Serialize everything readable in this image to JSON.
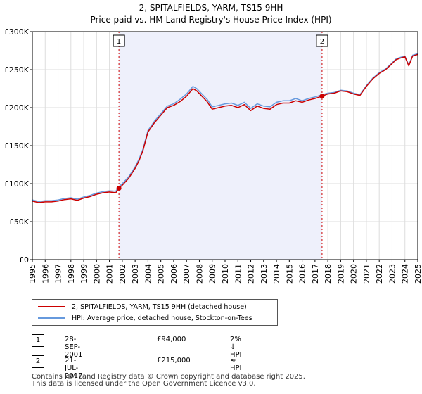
{
  "title_line1": "2, SPITALFIELDS, YARM, TS15 9HH",
  "title_line2": "Price paid vs. HM Land Registry's House Price Index (HPI)",
  "chart_data": {
    "type": "line",
    "title": "2, SPITALFIELDS, YARM, TS15 9HH — Price paid vs. HM Land Registry's House Price Index (HPI)",
    "xlabel": "",
    "ylabel": "",
    "xlim": [
      1995.0,
      2025.0
    ],
    "ylim": [
      0,
      300000
    ],
    "x_ticks": [
      1995,
      1996,
      1997,
      1998,
      1999,
      2000,
      2001,
      2002,
      2003,
      2004,
      2005,
      2006,
      2007,
      2008,
      2009,
      2010,
      2011,
      2012,
      2013,
      2014,
      2015,
      2016,
      2017,
      2018,
      2019,
      2020,
      2021,
      2022,
      2023,
      2024,
      2025
    ],
    "y_ticks": [
      {
        "value": 0,
        "label": "£0"
      },
      {
        "value": 50000,
        "label": "£50K"
      },
      {
        "value": 100000,
        "label": "£100K"
      },
      {
        "value": 150000,
        "label": "£150K"
      },
      {
        "value": 200000,
        "label": "£200K"
      },
      {
        "value": 250000,
        "label": "£250K"
      },
      {
        "value": 300000,
        "label": "£300K"
      }
    ],
    "ownership_span": [
      2001.74,
      2017.55
    ],
    "colors": {
      "property": "#cc0000",
      "hpi": "#6699dd",
      "span": "#eef0fb",
      "grid": "#dddddd",
      "marker": "#cc0000"
    },
    "series": [
      {
        "name": "2, SPITALFIELDS, YARM, TS15 9HH (detached house)",
        "x": [
          1995.0,
          1995.5,
          1996.0,
          1996.5,
          1997.0,
          1997.5,
          1998.0,
          1998.5,
          1999.0,
          1999.5,
          2000.0,
          2000.5,
          2001.0,
          2001.5,
          2001.74,
          2002.0,
          2002.5,
          2003.0,
          2003.3,
          2003.6,
          2004.0,
          2004.5,
          2005.0,
          2005.5,
          2006.0,
          2006.5,
          2007.0,
          2007.5,
          2007.8,
          2008.2,
          2008.6,
          2009.0,
          2009.5,
          2010.0,
          2010.5,
          2011.0,
          2011.5,
          2012.0,
          2012.5,
          2013.0,
          2013.5,
          2014.0,
          2014.5,
          2015.0,
          2015.5,
          2016.0,
          2016.5,
          2017.0,
          2017.55,
          2018.0,
          2018.5,
          2019.0,
          2019.5,
          2020.0,
          2020.5,
          2021.0,
          2021.5,
          2022.0,
          2022.5,
          2023.0,
          2023.3,
          2023.6,
          2024.0,
          2024.3,
          2024.6,
          2025.0
        ],
        "values": [
          77000,
          75000,
          76000,
          76000,
          77000,
          79000,
          80000,
          78000,
          81000,
          83000,
          86000,
          88000,
          89000,
          88000,
          94000,
          98000,
          107000,
          120000,
          130000,
          143000,
          168000,
          180000,
          190000,
          200000,
          203000,
          208000,
          215000,
          225000,
          222000,
          215000,
          208000,
          198000,
          200000,
          202000,
          203000,
          200000,
          204000,
          196000,
          202000,
          199000,
          198000,
          204000,
          206000,
          206000,
          209000,
          207000,
          210000,
          212000,
          215000,
          218000,
          219000,
          222000,
          221000,
          218000,
          216000,
          228000,
          238000,
          245000,
          250000,
          258000,
          263000,
          265000,
          267000,
          255000,
          268000,
          270000
        ]
      },
      {
        "name": "HPI: Average price, detached house, Stockton-on-Tees",
        "x": [
          1995.0,
          1995.5,
          1996.0,
          1996.5,
          1997.0,
          1997.5,
          1998.0,
          1998.5,
          1999.0,
          1999.5,
          2000.0,
          2000.5,
          2001.0,
          2001.5,
          2001.74,
          2002.0,
          2002.5,
          2003.0,
          2003.3,
          2003.6,
          2004.0,
          2004.5,
          2005.0,
          2005.5,
          2006.0,
          2006.5,
          2007.0,
          2007.5,
          2007.8,
          2008.2,
          2008.6,
          2009.0,
          2009.5,
          2010.0,
          2010.5,
          2011.0,
          2011.5,
          2012.0,
          2012.5,
          2013.0,
          2013.5,
          2014.0,
          2014.5,
          2015.0,
          2015.5,
          2016.0,
          2016.5,
          2017.0,
          2017.55,
          2018.0,
          2018.5,
          2019.0,
          2019.5,
          2020.0,
          2020.5,
          2021.0,
          2021.5,
          2022.0,
          2022.5,
          2023.0,
          2023.3,
          2023.6,
          2024.0,
          2024.3,
          2024.6,
          2025.0
        ],
        "values": [
          78500,
          76500,
          77500,
          77500,
          78500,
          80500,
          81500,
          79500,
          82500,
          84500,
          87500,
          89500,
          90500,
          90000,
          96000,
          100000,
          109000,
          122000,
          132000,
          145000,
          170000,
          182000,
          192000,
          202000,
          205000,
          211000,
          218000,
          228000,
          225000,
          218000,
          211000,
          201000,
          203000,
          205000,
          206000,
          203000,
          207000,
          199000,
          205000,
          202000,
          201000,
          207000,
          209000,
          209000,
          212000,
          209000,
          212000,
          214000,
          217000,
          219000,
          220000,
          223000,
          222000,
          219000,
          217000,
          229000,
          239000,
          246000,
          251000,
          259000,
          264000,
          266000,
          268000,
          256000,
          269000,
          271000
        ]
      }
    ],
    "markers": [
      {
        "label": "1",
        "x": 2001.74,
        "y": 94000
      },
      {
        "label": "2",
        "x": 2017.55,
        "y": 215000
      }
    ]
  },
  "legend": {
    "property_label": "2, SPITALFIELDS, YARM, TS15 9HH (detached house)",
    "hpi_label": "HPI: Average price, detached house, Stockton-on-Tees"
  },
  "sales": [
    {
      "num": "1",
      "date": "28-SEP-2001",
      "price": "£94,000",
      "hpi": "2% ↓ HPI"
    },
    {
      "num": "2",
      "date": "21-JUL-2017",
      "price": "£215,000",
      "hpi": "≈ HPI"
    }
  ],
  "footer": {
    "line1": "Contains HM Land Registry data © Crown copyright and database right 2025.",
    "line2": "This data is licensed under the Open Government Licence v3.0."
  }
}
